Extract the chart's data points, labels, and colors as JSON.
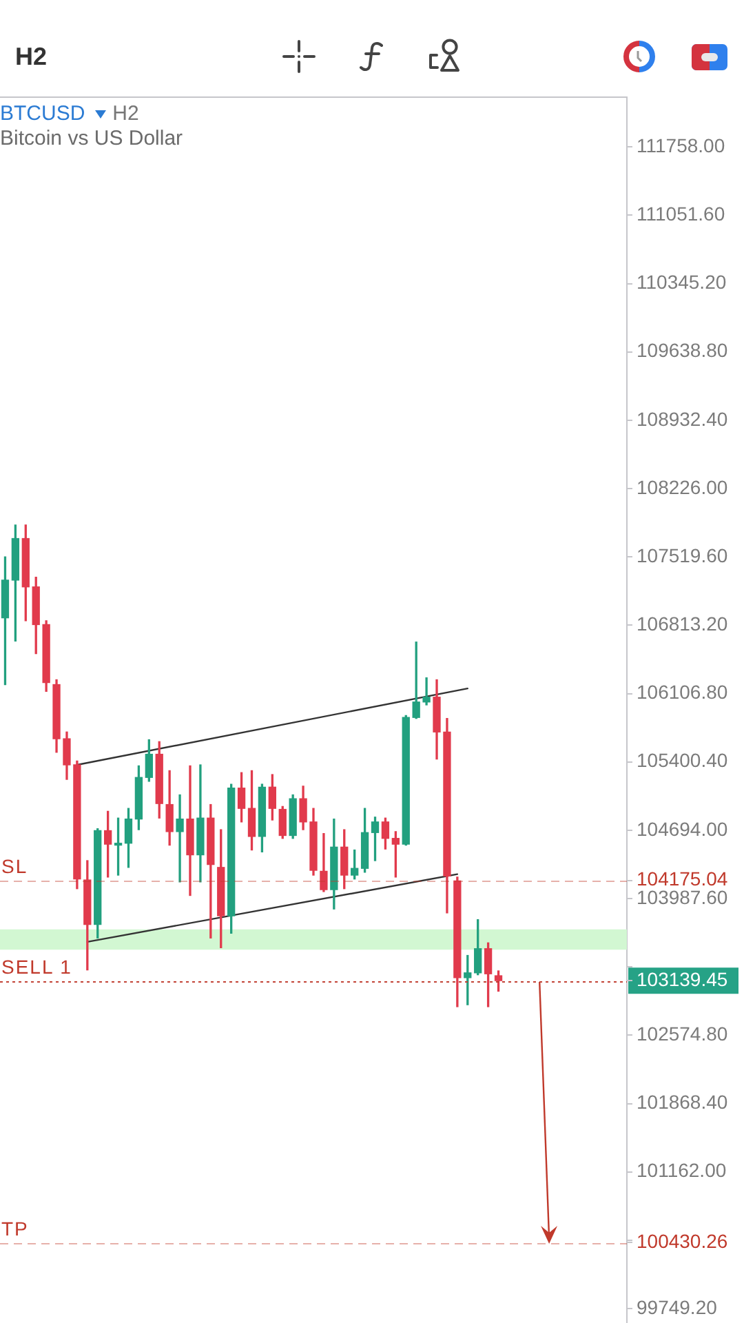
{
  "chart_data": {
    "type": "candlestick",
    "title": "BTCUSD",
    "subtitle": "Bitcoin vs US Dollar",
    "annotations": [
      "H2",
      "H2"
    ],
    "categories": [
      null,
      null,
      null,
      null,
      null,
      null,
      null,
      null,
      null,
      null,
      null,
      null,
      null,
      null,
      null,
      null,
      null,
      null,
      null,
      null,
      null,
      null,
      null,
      null,
      null,
      null,
      null,
      null,
      null,
      null,
      null,
      null,
      null,
      null,
      null,
      null,
      null,
      null,
      null,
      null,
      null,
      null,
      null,
      null,
      null,
      null,
      null,
      null,
      null,
      null,
      null,
      null,
      null,
      null,
      null,
      null,
      null,
      null,
      null,
      null,
      null
    ],
    "ohlc": [
      [
        106890,
        107520,
        106200,
        107280
      ],
      [
        107280,
        107850,
        106650,
        107710
      ],
      [
        107710,
        107850,
        106860,
        107210
      ],
      [
        107210,
        107310,
        106520,
        106820
      ],
      [
        106820,
        106860,
        106130,
        106220
      ],
      [
        106200,
        106250,
        105500,
        105640
      ],
      [
        105640,
        105710,
        105220,
        105370
      ],
      [
        105370,
        105410,
        104090,
        104190
      ],
      [
        104180,
        104380,
        103250,
        103720
      ],
      [
        103720,
        104710,
        103580,
        104690
      ],
      [
        104690,
        104890,
        104210,
        104550
      ],
      [
        104540,
        104820,
        104230,
        104560
      ],
      [
        104560,
        104920,
        104310,
        104810
      ],
      [
        104810,
        105360,
        104700,
        105240
      ],
      [
        105240,
        105630,
        105200,
        105480
      ],
      [
        105480,
        105610,
        104820,
        104970
      ],
      [
        104960,
        105310,
        104540,
        104680
      ],
      [
        104680,
        105060,
        104160,
        104810
      ],
      [
        104810,
        105360,
        104020,
        104440
      ],
      [
        104440,
        105370,
        104160,
        104820
      ],
      [
        104820,
        104960,
        103580,
        104340
      ],
      [
        104310,
        104700,
        103480,
        103810
      ],
      [
        103810,
        105170,
        103630,
        105130
      ],
      [
        105130,
        105290,
        104780,
        104920
      ],
      [
        104920,
        105310,
        104490,
        104630
      ],
      [
        104630,
        105170,
        104470,
        105140
      ],
      [
        105140,
        105270,
        104800,
        104920
      ],
      [
        104910,
        104940,
        104610,
        104640
      ],
      [
        104640,
        105060,
        104610,
        105020
      ],
      [
        105020,
        105150,
        104700,
        104780
      ],
      [
        104780,
        104920,
        104230,
        104280
      ],
      [
        104270,
        104660,
        104060,
        104080
      ],
      [
        104080,
        104810,
        103880,
        104520
      ],
      [
        104520,
        104700,
        104090,
        104230
      ],
      [
        104230,
        104490,
        104190,
        104300
      ],
      [
        104300,
        104920,
        104260,
        104670
      ],
      [
        104670,
        104830,
        104380,
        104780
      ],
      [
        104780,
        104820,
        104500,
        104610
      ],
      [
        104610,
        104680,
        104210,
        104550
      ],
      [
        104550,
        105880,
        104540,
        105860
      ],
      [
        105860,
        106640,
        105850,
        106020
      ],
      [
        106020,
        106270,
        105990,
        106070
      ],
      [
        106070,
        106250,
        105430,
        105710
      ],
      [
        105710,
        105850,
        103840,
        104220
      ],
      [
        104170,
        104210,
        102870,
        103170
      ],
      [
        103170,
        103400,
        102890,
        103220
      ],
      [
        103220,
        103770,
        103200,
        103470
      ],
      [
        103470,
        103530,
        102870,
        103210
      ],
      [
        103190,
        103240,
        103030,
        103139.45
      ],
      null,
      null,
      null,
      null,
      null,
      null,
      null,
      null,
      null,
      null,
      null,
      null
    ],
    "colors": [
      "#22a07f",
      "#22a07f",
      "#e13a4c",
      "#e13a4c",
      "#e13a4c",
      "#e13a4c",
      "#e13a4c",
      "#e13a4c",
      "#e13a4c",
      "#22a07f",
      "#e13a4c",
      "#22a07f",
      "#22a07f",
      "#22a07f",
      "#22a07f",
      "#e13a4c",
      "#e13a4c",
      "#22a07f",
      "#e13a4c",
      "#22a07f",
      "#e13a4c",
      "#e13a4c",
      "#22a07f",
      "#e13a4c",
      "#e13a4c",
      "#22a07f",
      "#e13a4c",
      "#e13a4c",
      "#22a07f",
      "#e13a4c",
      "#e13a4c",
      "#e13a4c",
      "#22a07f",
      "#e13a4c",
      "#22a07f",
      "#22a07f",
      "#22a07f",
      "#e13a4c",
      "#e13a4c",
      "#22a07f",
      "#22a07f",
      "#22a07f",
      "#e13a4c",
      "#e13a4c",
      "#e13a4c",
      "#22a07f",
      "#22a07f",
      "#e13a4c",
      "#e13a4c",
      null,
      null,
      null,
      null,
      null,
      null,
      null,
      null,
      null,
      null,
      null,
      null
    ],
    "series": [
      {
        "type": "line",
        "color": "#333333",
        "values": [
          null,
          null,
          null,
          null,
          null,
          null,
          null,
          105370,
          null,
          null,
          null,
          null,
          null,
          null,
          null,
          null,
          null,
          null,
          null,
          null,
          null,
          null,
          null,
          null,
          null,
          null,
          null,
          null,
          null,
          null,
          null,
          null,
          null,
          null,
          null,
          null,
          null,
          null,
          null,
          null,
          null,
          null,
          null,
          null,
          null,
          106160,
          null,
          null,
          null,
          null,
          null,
          null,
          null,
          null,
          null,
          null,
          null,
          null,
          null,
          null,
          null
        ]
      },
      {
        "type": "line",
        "color": "#333333",
        "values": [
          null,
          null,
          null,
          null,
          null,
          null,
          null,
          null,
          103540,
          null,
          null,
          null,
          null,
          null,
          null,
          null,
          null,
          null,
          null,
          null,
          null,
          null,
          null,
          null,
          null,
          null,
          null,
          null,
          null,
          null,
          null,
          null,
          null,
          null,
          null,
          null,
          null,
          null,
          null,
          null,
          null,
          null,
          null,
          null,
          104240,
          null,
          null,
          null,
          null,
          null,
          null,
          null,
          null,
          null,
          null,
          null,
          null,
          null,
          null,
          null,
          null
        ]
      }
    ],
    "ylim": [
      99600,
      112280
    ],
    "yticks": [
      {
        "value": 111758,
        "label": "111758.00"
      },
      {
        "value": 111051.6,
        "label": "111051.60"
      },
      {
        "value": 110345.2,
        "label": "110345.20"
      },
      {
        "value": 109638.8,
        "label": "109638.80"
      },
      {
        "value": 108932.4,
        "label": "108932.40"
      },
      {
        "value": 108226,
        "label": "108226.00"
      },
      {
        "value": 107519.6,
        "label": "107519.60"
      },
      {
        "value": 106813.2,
        "label": "106813.20"
      },
      {
        "value": 106106.8,
        "label": "106106.80"
      },
      {
        "value": 105400.4,
        "label": "105400.40"
      },
      {
        "value": 104694,
        "label": "104694.00"
      },
      {
        "value": 104175.04,
        "label": "104175.04"
      },
      {
        "value": 103987.6,
        "label": "103987.60"
      },
      {
        "value": 103281.2,
        "label": null
      },
      {
        "value": 103139.45,
        "label": "103139.45"
      },
      {
        "value": 102574.8,
        "label": "102574.80"
      },
      {
        "value": 101868.4,
        "label": "101868.40"
      },
      {
        "value": 101162,
        "label": "101162.00"
      },
      {
        "value": 100455.6,
        "label": null
      },
      {
        "value": 100430.26,
        "label": "100430.26"
      },
      {
        "value": 99749.2,
        "label": "99749.20"
      }
    ],
    "tick_labels": "y",
    "ref_lines": [
      {
        "axis": "y",
        "value": 104175.04,
        "label": "SL",
        "color": "#c0392b",
        "line_style": "dashed"
      },
      {
        "axis": "y",
        "value": 103139.45,
        "label": "SELL 1",
        "color": "#c0392b",
        "line_style": "dotted"
      },
      {
        "axis": "y",
        "value": 100430.26,
        "label": "TP",
        "color": "#c0392b",
        "line_style": "dashed"
      }
    ],
    "bands": [
      {
        "axis": "y",
        "from": 103460,
        "to": 103670,
        "color": "#d2f7d2"
      }
    ]
  }
}
